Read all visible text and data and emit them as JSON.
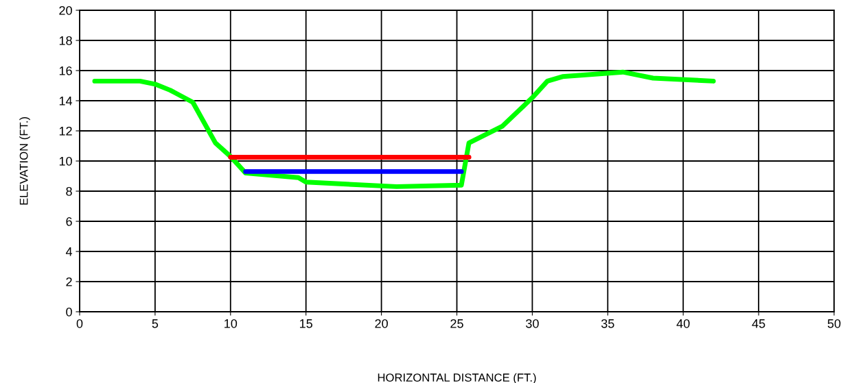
{
  "chart_data": {
    "type": "line",
    "xlabel": "HORIZONTAL DISTANCE (FT.)",
    "ylabel": "ELEVATION (FT.)",
    "xlim": [
      0,
      50
    ],
    "xticks": [
      0,
      5,
      10,
      15,
      20,
      25,
      30,
      35,
      40,
      45,
      50
    ],
    "ylim": [
      0,
      20
    ],
    "yticks": [
      0,
      2,
      4,
      6,
      8,
      10,
      12,
      14,
      16,
      18,
      20
    ],
    "grid": true,
    "series": [
      {
        "color": "#00ff00",
        "x": [
          1,
          4,
          5,
          6,
          7.5,
          9,
          10,
          11,
          14.5,
          15,
          21,
          25.3,
          25.8,
          28,
          30,
          31,
          32,
          36,
          38,
          42
        ],
        "values": [
          15.3,
          15.3,
          15.1,
          14.7,
          13.9,
          11.2,
          10.3,
          9.2,
          8.9,
          8.6,
          8.3,
          8.4,
          11.2,
          12.3,
          14.2,
          15.3,
          15.6,
          15.9,
          15.5,
          15.3
        ]
      },
      {
        "color": "#ff0000",
        "x": [
          10,
          25.8
        ],
        "values": [
          10.25,
          10.25
        ]
      },
      {
        "color": "#0000ff",
        "x": [
          11,
          25.3
        ],
        "values": [
          9.3,
          9.3
        ]
      }
    ]
  }
}
